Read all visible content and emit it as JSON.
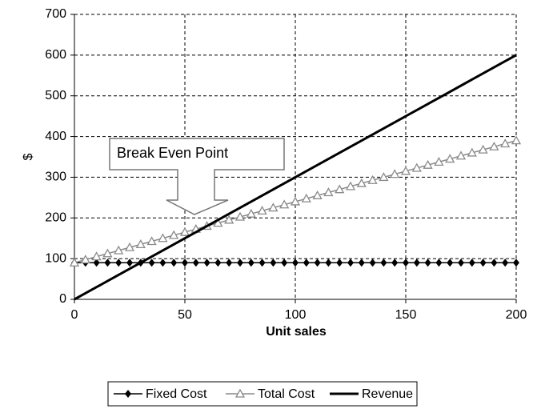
{
  "chart_data": {
    "type": "line",
    "xlabel": "Unit sales",
    "ylabel": "$",
    "annotation": "Break Even Point",
    "x": [
      0,
      5,
      10,
      15,
      20,
      25,
      30,
      35,
      40,
      45,
      50,
      55,
      60,
      65,
      70,
      75,
      80,
      85,
      90,
      95,
      100,
      105,
      110,
      115,
      120,
      125,
      130,
      135,
      140,
      145,
      150,
      155,
      160,
      165,
      170,
      175,
      180,
      185,
      190,
      195,
      200
    ],
    "series": [
      {
        "name": "Fixed Cost",
        "color": "#000000",
        "marker": "diamond",
        "values": [
          90,
          90,
          90,
          90,
          90,
          90,
          90,
          90,
          90,
          90,
          90,
          90,
          90,
          90,
          90,
          90,
          90,
          90,
          90,
          90,
          90,
          90,
          90,
          90,
          90,
          90,
          90,
          90,
          90,
          90,
          90,
          90,
          90,
          90,
          90,
          90,
          90,
          90,
          90,
          90,
          90
        ]
      },
      {
        "name": "Total Cost",
        "color": "#8a8a8a",
        "marker": "triangle",
        "values": [
          90,
          97.5,
          105,
          112.5,
          120,
          127.5,
          135,
          142.5,
          150,
          157.5,
          165,
          172.5,
          180,
          187.5,
          195,
          202.5,
          210,
          217.5,
          225,
          232.5,
          240,
          247.5,
          255,
          262.5,
          270,
          277.5,
          285,
          292.5,
          300,
          307.5,
          315,
          322.5,
          330,
          337.5,
          345,
          352.5,
          360,
          367.5,
          375,
          382.5,
          390
        ]
      },
      {
        "name": "Revenue",
        "color": "#000000",
        "marker": null,
        "values": [
          0,
          15,
          30,
          45,
          60,
          75,
          90,
          105,
          120,
          135,
          150,
          165,
          180,
          195,
          210,
          225,
          240,
          255,
          270,
          285,
          300,
          315,
          330,
          345,
          360,
          375,
          390,
          405,
          420,
          435,
          450,
          465,
          480,
          495,
          510,
          525,
          540,
          555,
          570,
          585,
          600
        ]
      }
    ],
    "xlim": [
      0,
      200
    ],
    "xticks": [
      0,
      50,
      100,
      150,
      200
    ],
    "ylim": [
      0,
      700
    ],
    "yticks": [
      0,
      100,
      200,
      300,
      400,
      500,
      600,
      700
    ],
    "grid": true,
    "legend": "bottom"
  }
}
